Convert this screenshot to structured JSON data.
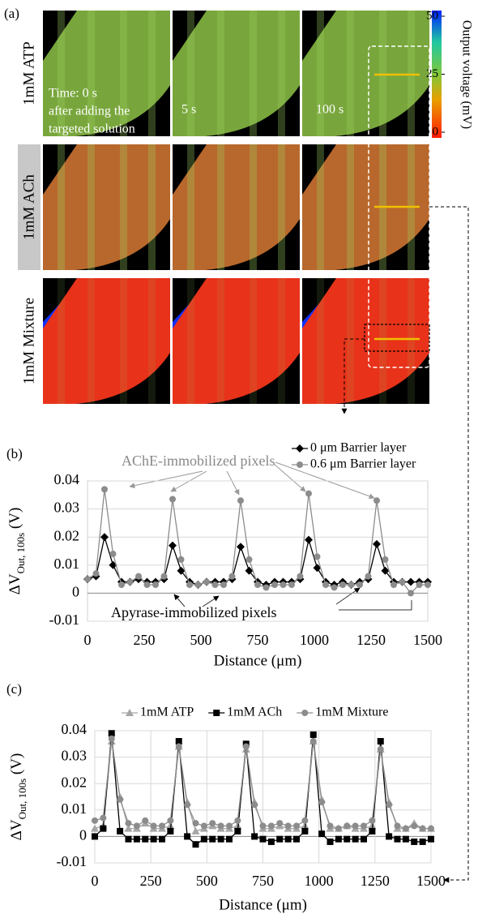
{
  "panel_labels": [
    "(a)",
    "(b)",
    "(c)"
  ],
  "image_panel": {
    "row_labels": [
      "1mM ATP",
      "1mM ACh",
      "1mM Mixture"
    ],
    "time_labels": [
      "Time: 0 s",
      "after adding the",
      "targeted solution",
      "5 s",
      "100 s"
    ],
    "colorbar": {
      "label": "Output voltage (mV)",
      "range": [
        0,
        50
      ],
      "ticks": [
        50,
        25,
        0
      ]
    }
  },
  "chart_data": [
    {
      "type": "line",
      "ylabel": {
        "main": "ΔV",
        "subscript": "Out, 100s",
        "unit": " (V)"
      },
      "xlabel": "Distance (μm)",
      "annotations": [
        "AChE-immobilized pixels",
        "Apyrase-immobilized pixels"
      ],
      "x": [
        0,
        37.5,
        75,
        112.5,
        150,
        187.5,
        225,
        262.5,
        300,
        337.5,
        375,
        412.5,
        450,
        487.5,
        525,
        562.5,
        600,
        637.5,
        675,
        712.5,
        750,
        787.5,
        825,
        862.5,
        900,
        937.5,
        975,
        1012.5,
        1050,
        1087.5,
        1125,
        1162.5,
        1200,
        1237.5,
        1275,
        1312.5,
        1350,
        1387.5,
        1425,
        1462.5,
        1500
      ],
      "series": [
        {
          "name": "0 μm Barrier layer",
          "color": "#000000",
          "marker": "diamond",
          "values": [
            0.005,
            0.006,
            0.02,
            0.01,
            0.004,
            0.004,
            0.005,
            0.004,
            0.004,
            0.005,
            0.017,
            0.008,
            0.004,
            0.003,
            0.004,
            0.004,
            0.004,
            0.005,
            0.0165,
            0.008,
            0.004,
            0.003,
            0.004,
            0.004,
            0.004,
            0.005,
            0.019,
            0.009,
            0.004,
            0.003,
            0.004,
            0.003,
            0.004,
            0.005,
            0.0175,
            0.008,
            0.004,
            0.004,
            0.004,
            0.004,
            0.004
          ]
        },
        {
          "name": "0.6 μm Barrier layer",
          "color": "#8c8c8c",
          "marker": "circle",
          "values": [
            0.005,
            0.007,
            0.037,
            0.014,
            0.003,
            0.004,
            0.006,
            0.003,
            0.003,
            0.006,
            0.0335,
            0.012,
            0.003,
            0.003,
            0.004,
            0.003,
            0.003,
            0.006,
            0.033,
            0.012,
            0.003,
            0.002,
            0.003,
            0.003,
            0.003,
            0.006,
            0.0355,
            0.013,
            0.003,
            0.002,
            0.003,
            0.003,
            0.003,
            0.006,
            0.033,
            0.012,
            0.003,
            0.004,
            0.0,
            0.003,
            0.003
          ]
        }
      ],
      "xlim": [
        0,
        1500
      ],
      "xticks": [
        0,
        250,
        500,
        750,
        1000,
        1250,
        1500
      ],
      "ylim": [
        -0.01,
        0.04
      ],
      "yticks": [
        -0.01,
        0,
        0.01,
        0.02,
        0.03,
        0.04
      ],
      "grid": "y",
      "legend": "top-right"
    },
    {
      "type": "line",
      "ylabel": {
        "main": "ΔV",
        "subscript": "Out, 100s",
        "unit": " (V)"
      },
      "xlabel": "Distance (μm)",
      "x": [
        0,
        37.5,
        75,
        112.5,
        150,
        187.5,
        225,
        262.5,
        300,
        337.5,
        375,
        412.5,
        450,
        487.5,
        525,
        562.5,
        600,
        637.5,
        675,
        712.5,
        750,
        787.5,
        825,
        862.5,
        900,
        937.5,
        975,
        1012.5,
        1050,
        1087.5,
        1125,
        1162.5,
        1200,
        1237.5,
        1275,
        1312.5,
        1350,
        1387.5,
        1425,
        1462.5,
        1500
      ],
      "series": [
        {
          "name": "1mM ATP",
          "color": "#a6a6a6",
          "marker": "triangle",
          "values": [
            0.003,
            0.004,
            0.036,
            0.015,
            0.003,
            0.003,
            0.005,
            0.003,
            0.003,
            0.004,
            0.034,
            0.013,
            0.002,
            0.003,
            0.004,
            0.003,
            0.003,
            0.004,
            0.033,
            0.013,
            0.003,
            0.003,
            0.004,
            0.003,
            0.003,
            0.004,
            0.036,
            0.014,
            0.003,
            0.003,
            0.004,
            0.003,
            0.003,
            0.004,
            0.033,
            0.013,
            0.003,
            0.003,
            0.005,
            0.003,
            0.003
          ]
        },
        {
          "name": "1mM ACh",
          "color": "#000000",
          "marker": "square",
          "values": [
            0.0,
            0.003,
            0.039,
            0.002,
            -0.001,
            -0.001,
            -0.001,
            -0.001,
            -0.001,
            0.002,
            0.036,
            0.0,
            -0.003,
            -0.001,
            -0.001,
            -0.001,
            -0.001,
            0.002,
            0.035,
            0.0,
            -0.001,
            -0.002,
            -0.001,
            -0.001,
            -0.001,
            0.002,
            0.0385,
            0.001,
            -0.002,
            -0.001,
            -0.001,
            -0.001,
            -0.001,
            0.002,
            0.036,
            0.0,
            -0.001,
            -0.001,
            -0.002,
            -0.002,
            -0.001
          ]
        },
        {
          "name": "1mM Mixture",
          "color": "#8c8c8c",
          "marker": "circle",
          "values": [
            0.006,
            0.007,
            0.037,
            0.014,
            0.005,
            0.004,
            0.006,
            0.004,
            0.004,
            0.006,
            0.034,
            0.012,
            0.005,
            0.004,
            0.005,
            0.004,
            0.004,
            0.006,
            0.034,
            0.012,
            0.004,
            0.004,
            0.005,
            0.004,
            0.004,
            0.006,
            0.036,
            0.013,
            0.004,
            0.003,
            0.004,
            0.004,
            0.004,
            0.006,
            0.033,
            0.012,
            0.004,
            0.003,
            0.004,
            0.003,
            0.003
          ]
        }
      ],
      "xlim": [
        0,
        1500
      ],
      "xticks": [
        0,
        250,
        500,
        750,
        1000,
        1250,
        1500
      ],
      "ylim": [
        -0.01,
        0.04
      ],
      "yticks": [
        -0.01,
        0,
        0.01,
        0.02,
        0.03,
        0.04
      ],
      "grid": "both",
      "legend": "top"
    }
  ]
}
